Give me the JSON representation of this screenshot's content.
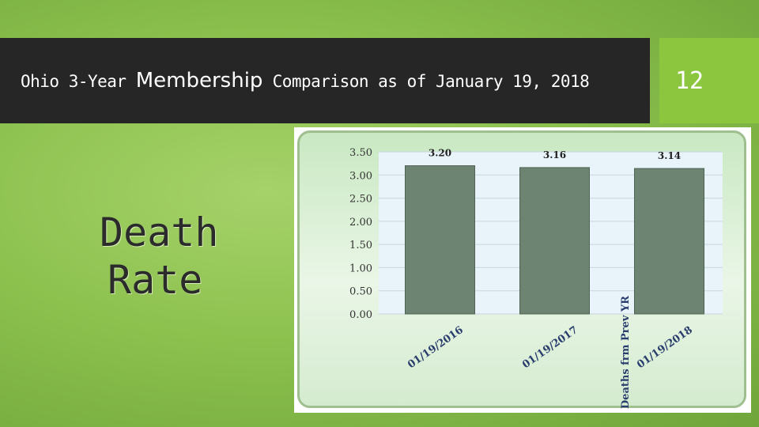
{
  "slide": {
    "title_prefix": "Ohio 3-Year ",
    "title_emph": "Membership",
    "title_suffix": " Comparison as of January 19, 2018",
    "page_number": "12",
    "side_label_line1": "Death",
    "side_label_line2": "Rate"
  },
  "colors": {
    "bar": "#6e8472",
    "title_bar": "#262626",
    "accent": "#8cc63f",
    "plot_background": "#e8f3fa"
  },
  "chart_data": {
    "type": "bar",
    "categories": [
      "01/19/2016",
      "01/19/2017",
      "01/19/2018"
    ],
    "values": [
      3.2,
      3.16,
      3.14
    ],
    "data_labels": [
      "3.20",
      "3.16",
      "3.14"
    ],
    "ylabel": "% Deaths frm Prev YR",
    "xlabel": "",
    "ylim": [
      0,
      3.5
    ],
    "yticks": [
      "0.00",
      "0.50",
      "1.00",
      "1.50",
      "2.00",
      "2.50",
      "3.00",
      "3.50"
    ],
    "grid": true
  }
}
